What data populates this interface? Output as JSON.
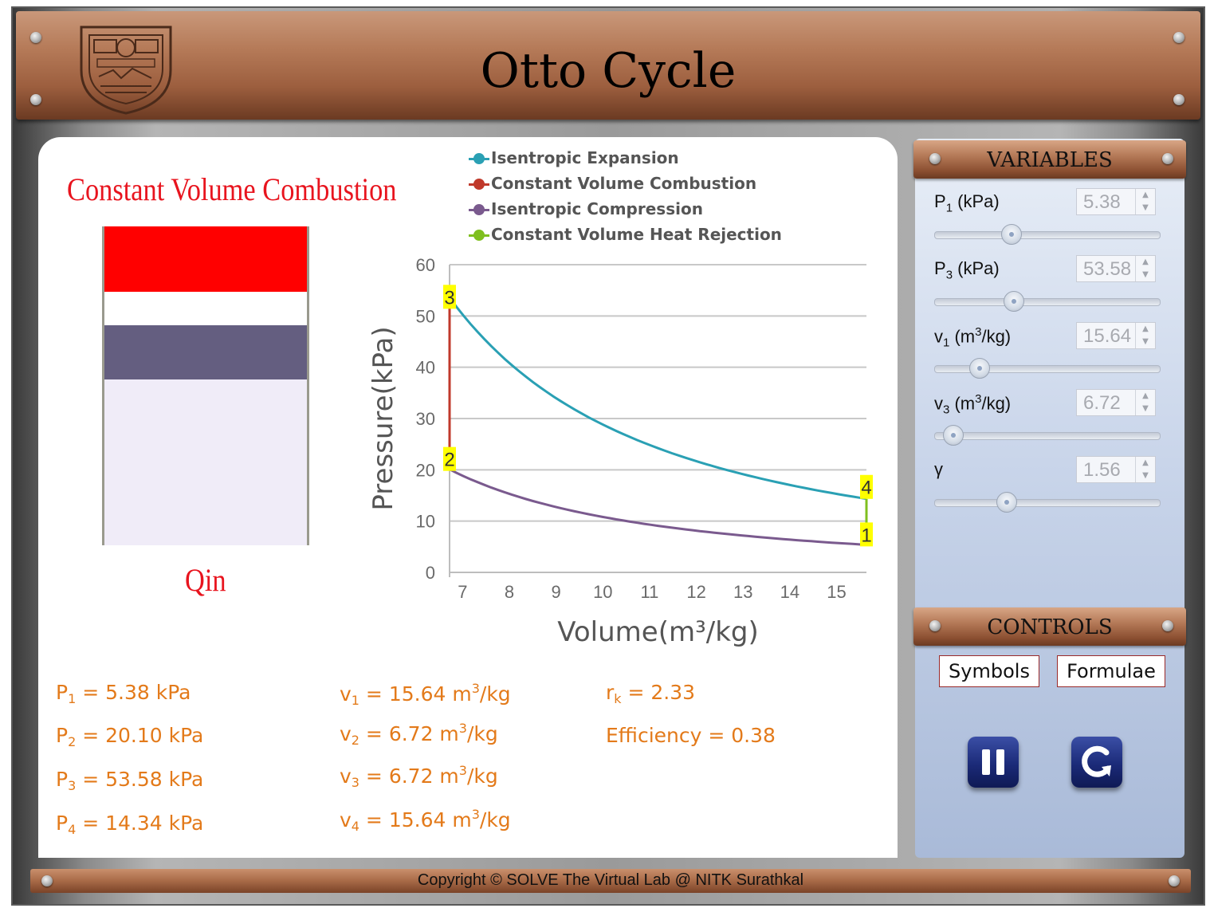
{
  "header": {
    "title": "Otto Cycle"
  },
  "phase": {
    "title": "Constant Volume Combustion",
    "heat_label": "Qin"
  },
  "legend": [
    {
      "label": "Isentropic Expansion",
      "color": "#2aa0b4"
    },
    {
      "label": "Constant Volume Combustion",
      "color": "#c0392b"
    },
    {
      "label": "Isentropic Compression",
      "color": "#7a5a8e"
    },
    {
      "label": "Constant Volume Heat Rejection",
      "color": "#7fbf1f"
    }
  ],
  "chart_data": {
    "type": "line",
    "xlabel": "Volume(m³/kg)",
    "ylabel": "Pressure(kPa)",
    "xlim": [
      6.72,
      15.64
    ],
    "ylim": [
      0,
      60
    ],
    "x_ticks": [
      "7",
      "8",
      "9",
      "10",
      "11",
      "12",
      "13",
      "14",
      "15"
    ],
    "y_ticks": [
      "0",
      "10",
      "20",
      "30",
      "40",
      "50",
      "60"
    ],
    "gamma": 1.56,
    "grid": "horizontal",
    "points": [
      {
        "label": "1",
        "v": 15.64,
        "p": 5.38
      },
      {
        "label": "2",
        "v": 6.72,
        "p": 20.1
      },
      {
        "label": "3",
        "v": 6.72,
        "p": 53.58
      },
      {
        "label": "4",
        "v": 15.64,
        "p": 14.34
      }
    ],
    "series": [
      {
        "name": "Isentropic Expansion",
        "from": "3",
        "to": "4",
        "color": "#2aa0b4"
      },
      {
        "name": "Constant Volume Combustion",
        "from": "2",
        "to": "3",
        "color": "#c0392b"
      },
      {
        "name": "Isentropic Compression",
        "from": "1",
        "to": "2",
        "color": "#7a5a8e"
      },
      {
        "name": "Constant Volume Heat Rejection",
        "from": "4",
        "to": "1",
        "color": "#7fbf1f"
      }
    ]
  },
  "results": {
    "p1": {
      "sym": "P",
      "sub": "1",
      "text": " = 5.38 kPa"
    },
    "p2": {
      "sym": "P",
      "sub": "2",
      "text": " = 20.10 kPa"
    },
    "p3": {
      "sym": "P",
      "sub": "3",
      "text": " = 53.58 kPa"
    },
    "p4": {
      "sym": "P",
      "sub": "4",
      "text": " = 14.34 kPa"
    },
    "v1": {
      "sym": "v",
      "sub": "1",
      "text": " = 15.64 m",
      "sup": "3",
      "unit": "/kg"
    },
    "v2": {
      "sym": "v",
      "sub": "2",
      "text": " = 6.72 m",
      "sup": "3",
      "unit": "/kg"
    },
    "v3": {
      "sym": "v",
      "sub": "3",
      "text": " = 6.72 m",
      "sup": "3",
      "unit": "/kg"
    },
    "v4": {
      "sym": "v",
      "sub": "4",
      "text": " = 15.64 m",
      "sup": "3",
      "unit": "/kg"
    },
    "rk": {
      "sym": "r",
      "sub": "k",
      "text": " = 2.33"
    },
    "eff": {
      "text": "Efficiency = 0.38"
    }
  },
  "variables": {
    "title": "VARIABLES",
    "items": [
      {
        "sym": "P",
        "sub": "1",
        "unit": " (kPa)",
        "value": "5.38",
        "slider_fraction": 0.34
      },
      {
        "sym": "P",
        "sub": "3",
        "unit": " (kPa)",
        "value": "53.58",
        "slider_fraction": 0.35
      },
      {
        "sym": "v",
        "sub": "1",
        "unit": " (m",
        "sup": "3",
        "unit2": "/kg)",
        "value": "15.64",
        "slider_fraction": 0.2
      },
      {
        "sym": "v",
        "sub": "3",
        "unit": " (m",
        "sup": "3",
        "unit2": "/kg)",
        "value": "6.72",
        "slider_fraction": 0.08
      },
      {
        "sym": "γ",
        "value": "1.56",
        "slider_fraction": 0.32
      }
    ]
  },
  "controls": {
    "title": "CONTROLS",
    "symbols_label": "Symbols",
    "formulae_label": "Formulae"
  },
  "footer": {
    "copyright": "Copyright © SOLVE The Virtual Lab @ NITK Surathkal"
  }
}
